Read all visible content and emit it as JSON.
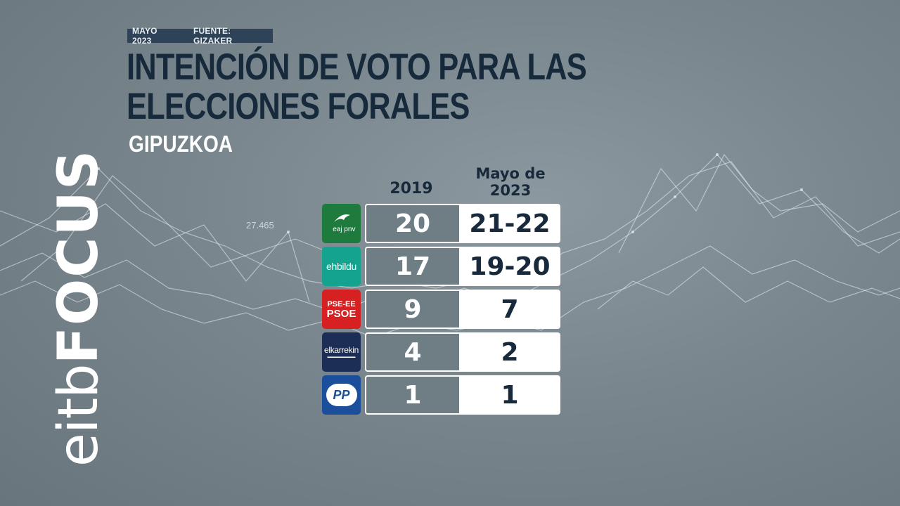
{
  "meta": {
    "date": "MAYO 2023",
    "source": "FUENTE: GIZAKER"
  },
  "title": "INTENCIÓN DE VOTO PARA LAS ELECCIONES FORALES",
  "subtitle": "GIPUZKOA",
  "brand": {
    "prefix": "eitb",
    "suffix": "FOCUS"
  },
  "background_label": "27.465",
  "columns": [
    "2019",
    "Mayo de 2023"
  ],
  "colors": {
    "title": "#162a3c",
    "meta_bar": "#2e4358",
    "pnv": "#1f7a3e",
    "bildu": "#13a38e",
    "psoe": "#d62021",
    "elkarrekin": "#1c2e55",
    "pp": "#1b4f9c"
  },
  "parties": [
    {
      "logo": "pnv-logo",
      "logo_text": "eaj pnv",
      "y2019": "20",
      "y2023": "21-22"
    },
    {
      "logo": "bildu-logo",
      "logo_text": "ehbildu",
      "y2019": "17",
      "y2023": "19-20"
    },
    {
      "logo": "psoe-logo",
      "logo_text": "PSE-EE PSOE",
      "logo_text_top": "PSE-EE",
      "logo_text_bottom": "PSOE",
      "y2019": "9",
      "y2023": "7"
    },
    {
      "logo": "elkarrekin-logo",
      "logo_text": "elkarrekin",
      "y2019": "4",
      "y2023": "2"
    },
    {
      "logo": "pp-logo",
      "logo_text": "PP",
      "y2019": "1",
      "y2023": "1"
    }
  ],
  "chart_data": {
    "type": "table",
    "title": "INTENCIÓN DE VOTO PARA LAS ELECCIONES FORALES",
    "subtitle": "GIPUZKOA",
    "columns": [
      "2019",
      "Mayo de 2023"
    ],
    "rows": [
      {
        "party": "EAJ-PNV",
        "2019": 20,
        "Mayo de 2023": "21-22"
      },
      {
        "party": "EH Bildu",
        "2019": 17,
        "Mayo de 2023": "19-20"
      },
      {
        "party": "PSE-EE PSOE",
        "2019": 9,
        "Mayo de 2023": 7
      },
      {
        "party": "Elkarrekin",
        "2019": 4,
        "Mayo de 2023": 2
      },
      {
        "party": "PP",
        "2019": 1,
        "Mayo de 2023": 1
      }
    ]
  }
}
